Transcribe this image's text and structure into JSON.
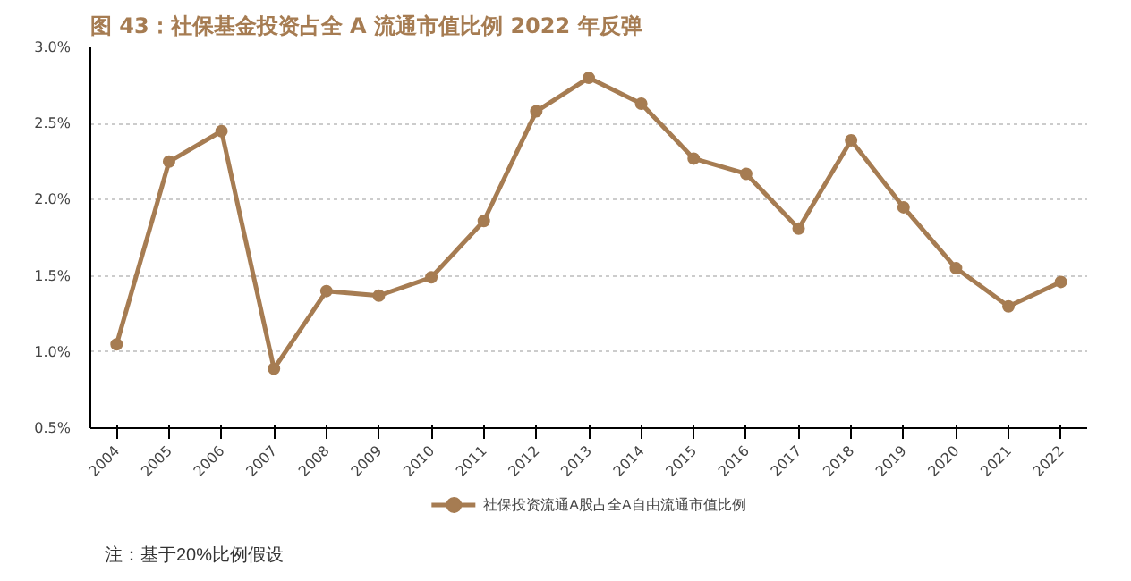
{
  "chart_data": {
    "type": "line",
    "title": "图 43：社保基金投资占全 A 流通市值比例 2022 年反弹",
    "categories": [
      "2004",
      "2005",
      "2006",
      "2007",
      "2008",
      "2009",
      "2010",
      "2011",
      "2012",
      "2013",
      "2014",
      "2015",
      "2016",
      "2017",
      "2018",
      "2019",
      "2020",
      "2021",
      "2022"
    ],
    "series": [
      {
        "name": "社保投资流通A股占全A自由流通市值比例",
        "color": "#a67c52",
        "values": [
          1.05,
          2.25,
          2.45,
          0.89,
          1.4,
          1.37,
          1.49,
          1.86,
          2.58,
          2.8,
          2.63,
          2.27,
          2.17,
          1.81,
          2.39,
          1.95,
          1.55,
          1.3,
          1.46
        ]
      }
    ],
    "ylim": [
      0.5,
      3.0
    ],
    "yticks": [
      {
        "value": 0.5,
        "label": "0.5%"
      },
      {
        "value": 1.0,
        "label": "1.0%"
      },
      {
        "value": 1.5,
        "label": "1.5%"
      },
      {
        "value": 2.0,
        "label": "2.0%"
      },
      {
        "value": 2.5,
        "label": "2.5%"
      },
      {
        "value": 3.0,
        "label": "3.0%"
      }
    ],
    "grid": "y",
    "legend": "bottom",
    "marker": "circle",
    "line_style": "solid",
    "annotations": [
      "注：基于20%比例假设"
    ]
  }
}
